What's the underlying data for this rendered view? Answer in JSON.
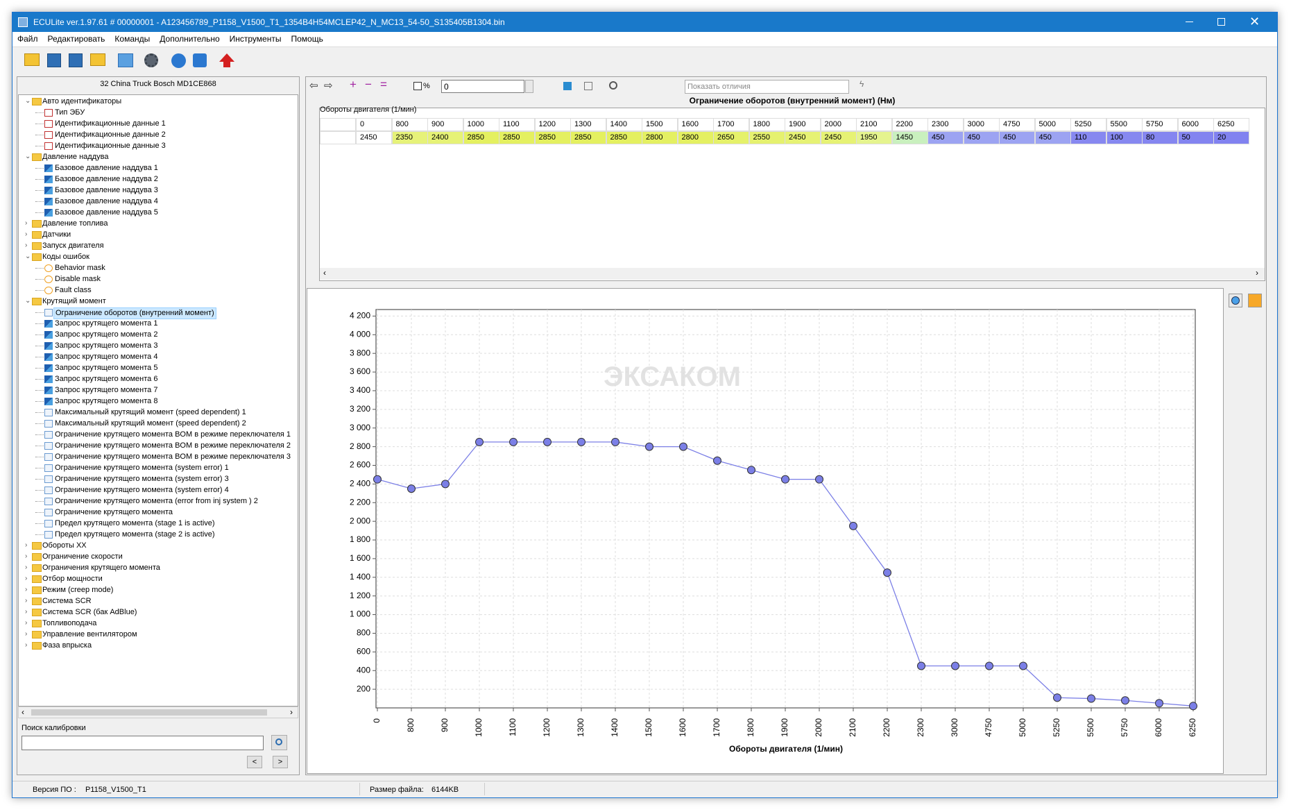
{
  "window": {
    "title": "ECULite ver.1.97.61  # 00000001 - A123456789_P1158_V1500_T1_1354B4H54MCLEP42_N_MC13_54-50_S135405B1304.bin",
    "menu": [
      "Файл",
      "Редактировать",
      "Команды",
      "Дополнительно",
      "Инструменты",
      "Помощь"
    ]
  },
  "left_panel": {
    "header": "32 China Truck Bosch MD1CE868",
    "tree": [
      {
        "label": "Авто идентификаторы",
        "children": [
          {
            "label": "Тип ЭБУ"
          },
          {
            "label": "Идентификационные данные 1"
          },
          {
            "label": "Идентификационные данные 2"
          },
          {
            "label": "Идентификационные данные 3"
          }
        ]
      },
      {
        "label": "Давление наддува",
        "children": [
          {
            "label": "Базовое давление наддува 1"
          },
          {
            "label": "Базовое давление наддува 2"
          },
          {
            "label": "Базовое давление наддува 3"
          },
          {
            "label": "Базовое давление наддува 4"
          },
          {
            "label": "Базовое давление наддува 5"
          }
        ]
      },
      {
        "label": "Давление топлива"
      },
      {
        "label": "Датчики"
      },
      {
        "label": "Запуск двигателя"
      },
      {
        "label": "Коды ошибок",
        "children": [
          {
            "label": "Behavior mask"
          },
          {
            "label": "Disable mask"
          },
          {
            "label": "Fault class"
          }
        ]
      },
      {
        "label": "Крутящий момент",
        "children": [
          {
            "label": "Ограничение оборотов (внутренний момент)",
            "selected": true
          },
          {
            "label": "Запрос крутящего момента 1"
          },
          {
            "label": "Запрос крутящего момента 2"
          },
          {
            "label": "Запрос крутящего момента 3"
          },
          {
            "label": "Запрос крутящего момента 4"
          },
          {
            "label": "Запрос крутящего момента 5"
          },
          {
            "label": "Запрос крутящего момента 6"
          },
          {
            "label": "Запрос крутящего момента 7"
          },
          {
            "label": "Запрос крутящего момента 8"
          },
          {
            "label": "Максимальный крутящий момент (speed dependent) 1"
          },
          {
            "label": "Максимальный крутящий момент (speed dependent) 2"
          },
          {
            "label": "Ограничение крутящего момента BOM в режиме переключателя 1"
          },
          {
            "label": "Ограничение крутящего момента BOM в режиме переключателя 2"
          },
          {
            "label": "Ограничение крутящего момента BOM в режиме переключателя 3"
          },
          {
            "label": "Ограничение крутящего момента (system error) 1"
          },
          {
            "label": "Ограничение крутящего момента (system error) 3"
          },
          {
            "label": "Ограничение крутящего момента (system error) 4"
          },
          {
            "label": "Ограничение крутящего момента (error from inj system ) 2"
          },
          {
            "label": "Ограничение крутящего момента"
          },
          {
            "label": "Предел крутящего момента (stage 1 is active)"
          },
          {
            "label": "Предел крутящего момента (stage 2 is active)"
          }
        ]
      },
      {
        "label": "Обороты XX"
      },
      {
        "label": "Ограничение скорости"
      },
      {
        "label": "Ограничения крутящего момента"
      },
      {
        "label": "Отбор мощности"
      },
      {
        "label": "Режим (creep mode)"
      },
      {
        "label": "Система SCR"
      },
      {
        "label": "Система SCR (бак AdBlue)"
      },
      {
        "label": "Топливоподача"
      },
      {
        "label": "Управление вентилятором"
      },
      {
        "label": "Фаза впрыска"
      }
    ],
    "search_label": "Поиск калибровки",
    "buttons": [
      "<",
      ">"
    ]
  },
  "editor": {
    "percent_label": "%",
    "input_value": "0",
    "diff_placeholder": "Показать отличия",
    "table_title": "Ограничение оборотов (внутренний момент) (Нм)",
    "table_axis_label": "Обороты двигателя (1/мин)",
    "watermark": "ЭКСАКОМ"
  },
  "chart_data": {
    "type": "line",
    "color": "#7b7fe6",
    "grid": true,
    "x_label": "Обороты двигателя (1/мин)",
    "categories": [
      "0",
      "800",
      "900",
      "1000",
      "1100",
      "1200",
      "1300",
      "1400",
      "1500",
      "1600",
      "1700",
      "1800",
      "1900",
      "2000",
      "2100",
      "2200",
      "2300",
      "3000",
      "4750",
      "5000",
      "5250",
      "5500",
      "5750",
      "6000",
      "6250"
    ],
    "values": [
      2450,
      2350,
      2400,
      2850,
      2850,
      2850,
      2850,
      2850,
      2800,
      2800,
      2650,
      2550,
      2450,
      2450,
      1950,
      1450,
      450,
      450,
      450,
      450,
      110,
      100,
      80,
      50,
      20
    ],
    "ylim": [
      0,
      4270
    ],
    "yticks": [
      200,
      400,
      600,
      800,
      {
        "value": 1000,
        "label": "1 000"
      },
      {
        "value": 1200,
        "label": "1 200"
      },
      {
        "value": 1400,
        "label": "1 400"
      },
      {
        "value": 1600,
        "label": "1 600"
      },
      {
        "value": 1800,
        "label": "1 800"
      },
      {
        "value": 2000,
        "label": "2 000"
      },
      {
        "value": 2200,
        "label": "2 200"
      },
      {
        "value": 2400,
        "label": "2 400"
      },
      {
        "value": 2600,
        "label": "2 600"
      },
      {
        "value": 2800,
        "label": "2 800"
      },
      {
        "value": 3000,
        "label": "3 000"
      },
      {
        "value": 3200,
        "label": "3 200"
      },
      {
        "value": 3400,
        "label": "3 400"
      },
      {
        "value": 3600,
        "label": "3 600"
      },
      {
        "value": 3800,
        "label": "3 800"
      },
      {
        "value": 4000,
        "label": "4 000"
      },
      {
        "value": 4200,
        "label": "4 200"
      }
    ]
  },
  "status_bar": {
    "version_label": "Версия ПО :",
    "version": "P1158_V1500_T1",
    "size_label": "Размер файла:",
    "size": "6144KB"
  }
}
